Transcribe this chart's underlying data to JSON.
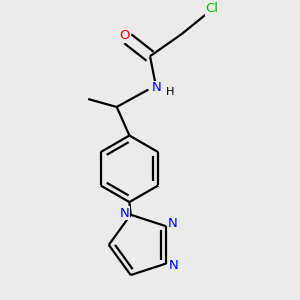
{
  "bg_color": "#ebebeb",
  "atom_colors": {
    "N": "#0000ff",
    "O": "#ff0000",
    "Cl": "#00bb00"
  },
  "bond_color": "#000000",
  "bond_width": 1.6,
  "font_size": 9.5
}
